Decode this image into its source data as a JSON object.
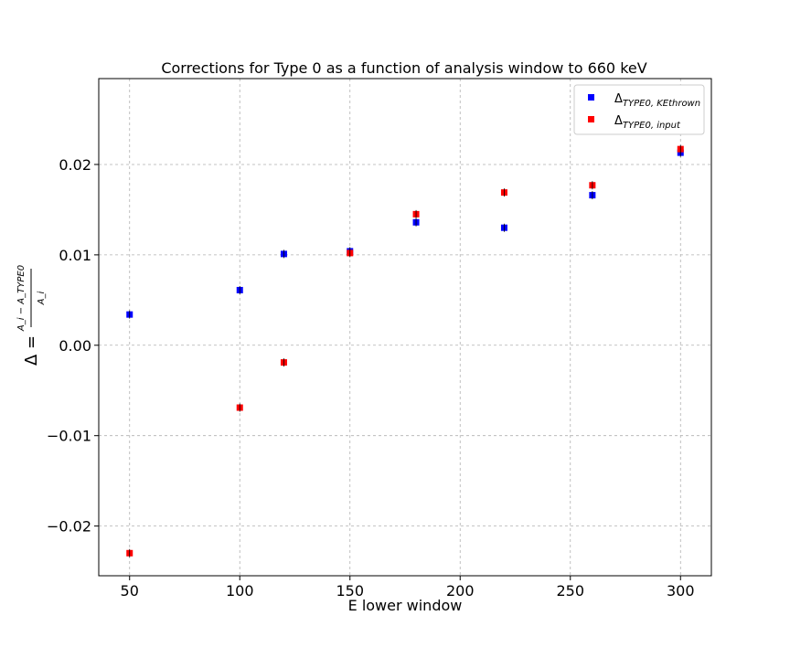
{
  "chart_data": {
    "type": "scatter",
    "title": "Corrections for Type 0 as a function of analysis window to 660 keV",
    "xlabel": "E lower window",
    "ylabel_parts": {
      "lhs": "Δ =",
      "numerator": "A_i − A_TYPE0",
      "denominator": "A_i"
    },
    "xlim": [
      36,
      314
    ],
    "ylim": [
      -0.0255,
      0.0295
    ],
    "x_ticks": [
      50,
      100,
      150,
      200,
      250,
      300
    ],
    "x_tick_labels": [
      "50",
      "100",
      "150",
      "200",
      "250",
      "300"
    ],
    "y_ticks": [
      -0.02,
      -0.01,
      0.0,
      0.01,
      0.02
    ],
    "y_tick_labels": [
      "−0.02",
      "−0.01",
      "0.00",
      "0.01",
      "0.02"
    ],
    "grid": true,
    "legend_position": "top-right",
    "series": [
      {
        "name": "Δ_{TYPE0, KEthrown}",
        "name_base": "Δ",
        "name_sub": "TYPE0, KEthrown",
        "color": "#0000ff",
        "marker": "square",
        "x": [
          50,
          100,
          120,
          150,
          180,
          220,
          260,
          300
        ],
        "y": [
          0.0034,
          0.0061,
          0.0101,
          0.0104,
          0.0136,
          0.013,
          0.0166,
          0.0213
        ]
      },
      {
        "name": "Δ_{TYPE0, input}",
        "name_base": "Δ",
        "name_sub": "TYPE0, input",
        "color": "#ff0000",
        "marker": "square",
        "x": [
          50,
          100,
          120,
          150,
          180,
          220,
          260,
          300
        ],
        "y": [
          -0.023,
          -0.0069,
          -0.0019,
          0.0102,
          0.0145,
          0.0169,
          0.0177,
          0.0217
        ]
      }
    ]
  }
}
